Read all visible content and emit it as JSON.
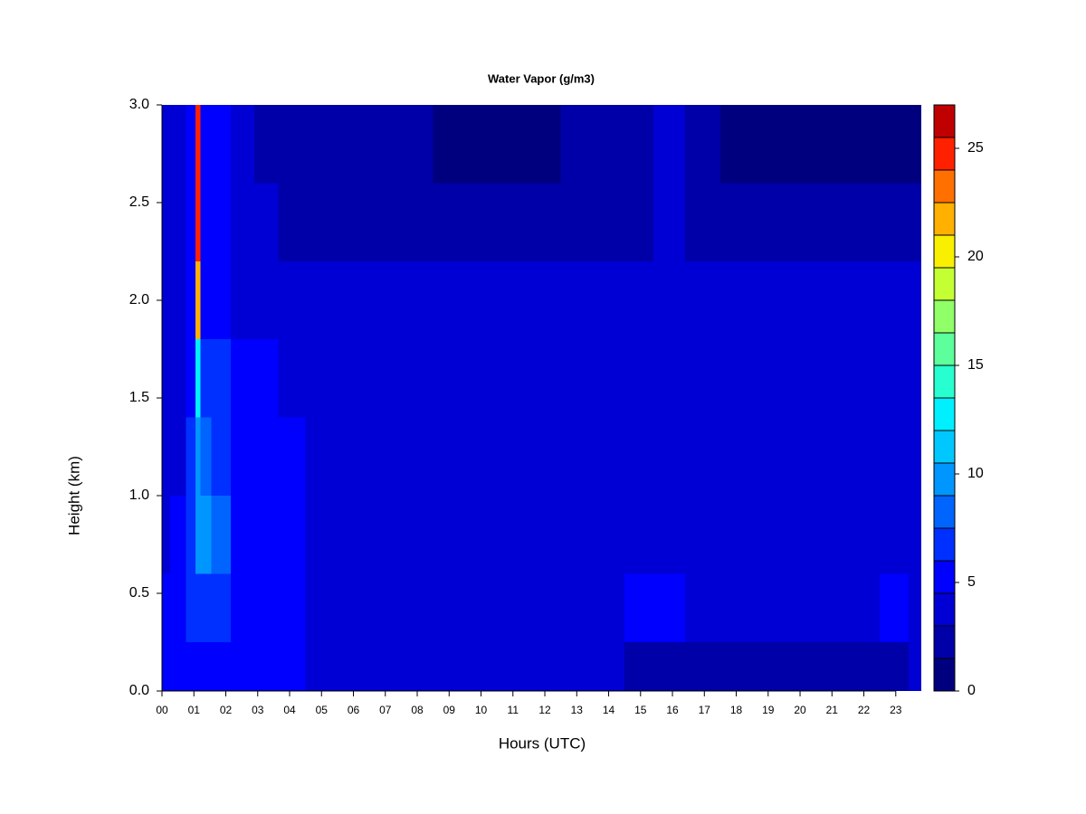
{
  "chart_data": {
    "type": "heatmap",
    "title": "Water Vapor (g/m3)",
    "xlabel": "Hours (UTC)",
    "ylabel": "Height (km)",
    "x": [
      0,
      0.5,
      1.0,
      1.1,
      1.3,
      1.8,
      2.5,
      3.3,
      4,
      5,
      6,
      7,
      8,
      9,
      10,
      11,
      12,
      13,
      14,
      15,
      15.8,
      17,
      18,
      19,
      20,
      21,
      22,
      23,
      23.8
    ],
    "y": [
      0.1,
      0.4,
      0.8,
      1.2,
      1.6,
      2.0,
      2.4,
      2.8
    ],
    "z": [
      [
        4.5,
        4.5,
        5,
        5.5,
        5.5,
        5.5,
        5,
        5,
        4.5,
        3.5,
        3.5,
        3.5,
        3.5,
        3.5,
        3.5,
        3.5,
        3.5,
        3.5,
        3,
        2.5,
        2.5,
        2.5,
        2.5,
        2.5,
        2.5,
        2.5,
        2.5,
        2.5,
        3
      ],
      [
        4.5,
        5,
        6,
        6,
        6.5,
        6,
        5.5,
        5,
        4.5,
        4,
        4,
        4,
        4,
        4,
        4,
        4,
        4,
        4,
        4,
        4.5,
        4.5,
        4,
        4,
        4,
        4,
        4,
        4,
        4.5,
        4
      ],
      [
        4,
        4.5,
        7,
        10,
        9.5,
        7.5,
        5.5,
        5,
        4.5,
        4,
        4,
        4,
        4,
        4,
        4,
        4,
        4,
        4,
        4,
        4,
        4,
        4,
        4,
        4,
        4,
        4,
        4,
        4,
        4
      ],
      [
        4,
        4,
        6,
        9,
        8,
        7,
        5,
        5,
        4.5,
        4,
        4,
        4,
        4,
        4,
        4,
        4,
        4,
        4,
        4,
        4,
        4,
        4,
        4,
        4,
        4,
        4,
        4,
        4,
        4
      ],
      [
        3.5,
        3.5,
        5,
        13,
        6.5,
        6,
        4.5,
        4.5,
        4,
        3.5,
        3.5,
        3.5,
        3.5,
        3.5,
        3.5,
        3.5,
        3.5,
        3.5,
        3.5,
        3.5,
        3.5,
        3.5,
        3.5,
        3.5,
        3.5,
        3.5,
        3.5,
        3.5,
        3.5
      ],
      [
        3.5,
        3.5,
        4.5,
        22,
        5.5,
        5.5,
        4,
        4,
        3.5,
        3,
        3,
        3,
        3,
        3,
        3,
        3,
        3,
        3,
        3,
        3,
        3.5,
        3,
        3,
        3,
        3,
        3,
        3,
        3,
        3
      ],
      [
        3.5,
        3.5,
        4.5,
        24,
        5,
        5,
        3.5,
        3,
        2.5,
        2.5,
        2.5,
        2.5,
        2.5,
        2.5,
        2.5,
        2.5,
        2.5,
        2.5,
        2.5,
        2.5,
        3,
        2.5,
        2,
        2,
        2,
        2,
        2,
        2,
        2
      ],
      [
        3.5,
        3.5,
        4.5,
        25,
        5,
        5,
        3.5,
        2,
        1.5,
        1.5,
        1.5,
        1.5,
        1.5,
        1,
        1,
        1,
        1,
        1.5,
        1.5,
        2,
        3,
        1.5,
        1,
        1,
        1,
        1,
        1,
        1,
        1
      ]
    ],
    "xlim": [
      0,
      23.8
    ],
    "ylim": [
      0,
      3
    ],
    "xticks": [
      {
        "value": 0,
        "label": "00"
      },
      {
        "value": 1,
        "label": "01"
      },
      {
        "value": 2,
        "label": "02"
      },
      {
        "value": 3,
        "label": "03"
      },
      {
        "value": 4,
        "label": "04"
      },
      {
        "value": 5,
        "label": "05"
      },
      {
        "value": 6,
        "label": "06"
      },
      {
        "value": 7,
        "label": "07"
      },
      {
        "value": 8,
        "label": "08"
      },
      {
        "value": 9,
        "label": "09"
      },
      10,
      11,
      12,
      13,
      14,
      15,
      16,
      17,
      18,
      19,
      20,
      21,
      22,
      23
    ],
    "yticks": [
      {
        "value": 0,
        "label": "0.0"
      },
      {
        "value": 0.5,
        "label": "0.5"
      },
      {
        "value": 1,
        "label": "1.0"
      },
      {
        "value": 1.5,
        "label": "1.5"
      },
      {
        "value": 2,
        "label": "2.0"
      },
      {
        "value": 2.5,
        "label": "2.5"
      },
      {
        "value": 3,
        "label": "3.0"
      }
    ],
    "colorbar": {
      "levels": [
        0,
        1.5,
        3,
        4.5,
        6,
        7.5,
        9,
        10.5,
        12,
        13.5,
        15,
        16.5,
        18,
        19.5,
        21,
        22.5,
        24,
        25.5,
        27
      ],
      "colors": [
        "#00007f",
        "#0000a8",
        "#0000d4",
        "#0000ff",
        "#0030ff",
        "#0064ff",
        "#0096ff",
        "#00c8ff",
        "#00f0ff",
        "#28ffd0",
        "#5cff9c",
        "#90ff68",
        "#c4ff34",
        "#f8f000",
        "#ffb000",
        "#ff7000",
        "#ff2000",
        "#c00000"
      ],
      "lim": [
        0,
        27
      ],
      "ticks": [
        0,
        5,
        10,
        15,
        20,
        25
      ]
    }
  }
}
